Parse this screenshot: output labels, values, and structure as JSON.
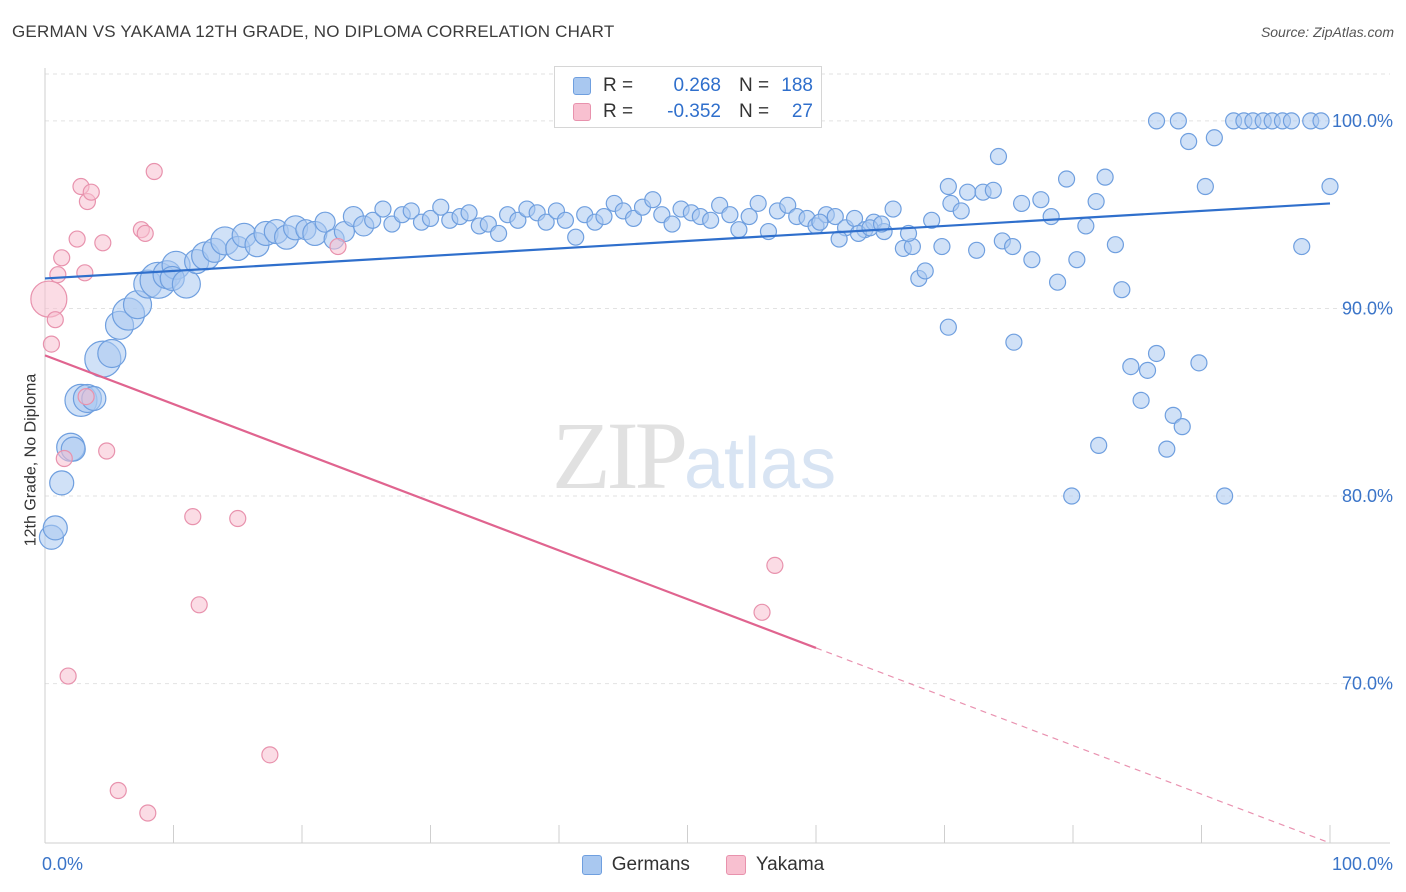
{
  "title": "GERMAN VS YAKAMA 12TH GRADE, NO DIPLOMA CORRELATION CHART",
  "source": "Source: ZipAtlas.com",
  "watermark": {
    "zip": "ZIP",
    "atlas": "atlas"
  },
  "legend": {
    "rows": [
      {
        "r_label": "R =",
        "r_value": "0.268",
        "n_label": "N =",
        "n_value": "188",
        "color": "#a9c8f0",
        "border": "#6f9fdf"
      },
      {
        "r_label": "R =",
        "r_value": "-0.352",
        "n_label": "N =",
        "n_value": "27",
        "color": "#f8c0d0",
        "border": "#e892ad"
      }
    ]
  },
  "bottom_legend": [
    {
      "label": "Germans",
      "color": "#a9c8f0",
      "border": "#6f9fdf"
    },
    {
      "label": "Yakama",
      "color": "#f8c0d0",
      "border": "#e892ad"
    }
  ],
  "chart_data": {
    "type": "scatter",
    "title": "GERMAN VS YAKAMA 12TH GRADE, NO DIPLOMA CORRELATION CHART",
    "xlabel": "",
    "ylabel": "12th Grade, No Diploma",
    "xlim": [
      0,
      100
    ],
    "ylim": [
      61.5,
      102.5
    ],
    "x_tick_labels": [
      {
        "value": 0,
        "label": "0.0%"
      },
      {
        "value": 100,
        "label": "100.0%"
      }
    ],
    "y_tick_labels": [
      {
        "value": 70,
        "label": "70.0%"
      },
      {
        "value": 80,
        "label": "80.0%"
      },
      {
        "value": 90,
        "label": "90.0%"
      },
      {
        "value": 100,
        "label": "100.0%"
      }
    ],
    "grid": "horizontal dashed",
    "series": [
      {
        "name": "Germans",
        "color": "#a9c8f0",
        "stroke": "#6f9fdf",
        "trend": {
          "x": [
            0,
            100
          ],
          "y": [
            91.6,
            95.6
          ],
          "color": "#2f6fcc"
        },
        "points": [
          [
            0.5,
            77.8,
            12
          ],
          [
            0.8,
            78.3,
            12
          ],
          [
            1.3,
            80.7,
            12
          ],
          [
            2.0,
            82.6,
            14
          ],
          [
            2.2,
            82.5,
            12
          ],
          [
            2.8,
            85.1,
            16
          ],
          [
            3.3,
            85.2,
            14
          ],
          [
            3.8,
            85.2,
            12
          ],
          [
            4.5,
            87.3,
            18
          ],
          [
            5.2,
            87.6,
            14
          ],
          [
            5.8,
            89.1,
            14
          ],
          [
            6.5,
            89.7,
            16
          ],
          [
            7.2,
            90.2,
            14
          ],
          [
            8.0,
            91.3,
            14
          ],
          [
            8.8,
            91.5,
            18
          ],
          [
            9.5,
            91.8,
            14
          ],
          [
            10.2,
            92.3,
            14
          ],
          [
            9.9,
            91.6,
            12
          ],
          [
            11.0,
            91.3,
            14
          ],
          [
            11.8,
            92.5,
            12
          ],
          [
            12.5,
            92.8,
            14
          ],
          [
            13.2,
            93.1,
            12
          ],
          [
            14.0,
            93.6,
            14
          ],
          [
            15.0,
            93.2,
            12
          ],
          [
            15.5,
            93.9,
            12
          ],
          [
            16.5,
            93.4,
            12
          ],
          [
            17.2,
            94.0,
            12
          ],
          [
            18.0,
            94.1,
            12
          ],
          [
            18.8,
            93.8,
            12
          ],
          [
            19.5,
            94.3,
            12
          ],
          [
            20.3,
            94.2,
            10
          ],
          [
            21.0,
            94.0,
            12
          ],
          [
            21.8,
            94.6,
            10
          ],
          [
            22.5,
            93.7,
            10
          ],
          [
            23.3,
            94.1,
            10
          ],
          [
            24.0,
            94.9,
            10
          ],
          [
            24.8,
            94.4,
            10
          ],
          [
            25.5,
            94.7,
            8
          ],
          [
            26.3,
            95.3,
            8
          ],
          [
            27.0,
            94.5,
            8
          ],
          [
            27.8,
            95.0,
            8
          ],
          [
            28.5,
            95.2,
            8
          ],
          [
            29.3,
            94.6,
            8
          ],
          [
            30.0,
            94.8,
            8
          ],
          [
            30.8,
            95.4,
            8
          ],
          [
            31.5,
            94.7,
            8
          ],
          [
            32.3,
            94.9,
            8
          ],
          [
            33.0,
            95.1,
            8
          ],
          [
            33.8,
            94.4,
            8
          ],
          [
            34.5,
            94.5,
            8
          ],
          [
            35.3,
            94.0,
            8
          ],
          [
            36.0,
            95.0,
            8
          ],
          [
            36.8,
            94.7,
            8
          ],
          [
            37.5,
            95.3,
            8
          ],
          [
            38.3,
            95.1,
            8
          ],
          [
            39.0,
            94.6,
            8
          ],
          [
            39.8,
            95.2,
            8
          ],
          [
            40.5,
            94.7,
            8
          ],
          [
            41.3,
            93.8,
            8
          ],
          [
            42.0,
            95.0,
            8
          ],
          [
            42.8,
            94.6,
            8
          ],
          [
            43.5,
            94.9,
            8
          ],
          [
            44.3,
            95.6,
            8
          ],
          [
            45.0,
            95.2,
            8
          ],
          [
            45.8,
            94.8,
            8
          ],
          [
            46.5,
            95.4,
            8
          ],
          [
            47.3,
            95.8,
            8
          ],
          [
            48.0,
            95.0,
            8
          ],
          [
            48.8,
            94.5,
            8
          ],
          [
            49.5,
            95.3,
            8
          ],
          [
            50.3,
            95.1,
            8
          ],
          [
            51.0,
            94.9,
            8
          ],
          [
            51.8,
            94.7,
            8
          ],
          [
            52.5,
            95.5,
            8
          ],
          [
            53.3,
            95.0,
            8
          ],
          [
            54.0,
            94.2,
            8
          ],
          [
            54.8,
            94.9,
            8
          ],
          [
            55.5,
            95.6,
            8
          ],
          [
            56.3,
            94.1,
            8
          ],
          [
            57.0,
            95.2,
            8
          ],
          [
            57.8,
            95.5,
            8
          ],
          [
            58.5,
            94.9,
            8
          ],
          [
            59.3,
            94.8,
            8
          ],
          [
            60.0,
            94.4,
            8
          ],
          [
            60.8,
            95.0,
            8
          ],
          [
            61.5,
            94.9,
            8
          ],
          [
            62.3,
            94.3,
            8
          ],
          [
            63.0,
            94.8,
            8
          ],
          [
            63.8,
            94.2,
            8
          ],
          [
            64.5,
            94.6,
            8
          ],
          [
            65.3,
            94.1,
            8
          ],
          [
            66.0,
            95.3,
            8
          ],
          [
            66.8,
            93.2,
            8
          ],
          [
            67.5,
            93.3,
            8
          ],
          [
            68.0,
            91.6,
            8
          ],
          [
            68.5,
            92.0,
            8
          ],
          [
            69.0,
            94.7,
            8
          ],
          [
            69.8,
            93.3,
            8
          ],
          [
            70.5,
            95.6,
            8
          ],
          [
            71.3,
            95.2,
            8
          ],
          [
            71.8,
            96.2,
            8
          ],
          [
            72.5,
            93.1,
            8
          ],
          [
            73.0,
            96.2,
            8
          ],
          [
            73.8,
            96.3,
            8
          ],
          [
            74.5,
            93.6,
            8
          ],
          [
            75.3,
            93.3,
            8
          ],
          [
            76.0,
            95.6,
            8
          ],
          [
            76.8,
            92.6,
            8
          ],
          [
            77.5,
            95.8,
            8
          ],
          [
            78.3,
            94.9,
            8
          ],
          [
            78.8,
            91.4,
            8
          ],
          [
            79.5,
            96.9,
            8
          ],
          [
            80.3,
            92.6,
            8
          ],
          [
            81.0,
            94.4,
            8
          ],
          [
            81.8,
            95.7,
            8
          ],
          [
            82.5,
            97.0,
            8
          ],
          [
            83.3,
            93.4,
            8
          ],
          [
            83.8,
            91.0,
            8
          ],
          [
            84.5,
            86.9,
            8
          ],
          [
            85.3,
            85.1,
            8
          ],
          [
            85.8,
            86.7,
            8
          ],
          [
            86.5,
            87.6,
            8
          ],
          [
            87.3,
            82.5,
            8
          ],
          [
            87.8,
            84.3,
            8
          ],
          [
            88.5,
            83.7,
            8
          ],
          [
            89.0,
            98.9,
            8
          ],
          [
            89.8,
            87.1,
            8
          ],
          [
            90.3,
            96.5,
            8
          ],
          [
            91.0,
            99.1,
            8
          ],
          [
            91.8,
            80.0,
            8
          ],
          [
            92.5,
            100.0,
            8
          ],
          [
            93.3,
            100.0,
            8
          ],
          [
            94.0,
            100.0,
            8
          ],
          [
            94.8,
            100.0,
            8
          ],
          [
            95.5,
            100.0,
            8
          ],
          [
            96.3,
            100.0,
            8
          ],
          [
            97.0,
            100.0,
            8
          ],
          [
            97.8,
            93.3,
            8
          ],
          [
            98.5,
            100.0,
            8
          ],
          [
            99.3,
            100.0,
            8
          ],
          [
            100.0,
            96.5,
            8
          ],
          [
            70.3,
            96.5,
            8
          ],
          [
            74.2,
            98.1,
            8
          ],
          [
            70.3,
            89.0,
            8
          ],
          [
            75.4,
            88.2,
            8
          ],
          [
            79.9,
            80.0,
            8
          ],
          [
            82.0,
            82.7,
            8
          ],
          [
            86.5,
            100.0,
            8
          ],
          [
            88.2,
            100.0,
            8
          ],
          [
            60.3,
            94.6,
            8
          ],
          [
            61.8,
            93.7,
            8
          ],
          [
            63.3,
            94.0,
            8
          ],
          [
            64.2,
            94.3,
            8
          ],
          [
            65.1,
            94.5,
            8
          ],
          [
            67.2,
            94.0,
            8
          ]
        ]
      },
      {
        "name": "Yakama",
        "color": "#f8c0d0",
        "stroke": "#e892ad",
        "trend": {
          "x": [
            0,
            100
          ],
          "y": [
            87.5,
            61.5
          ],
          "solid_until": 60,
          "color": "#e0648f"
        },
        "points": [
          [
            0.3,
            90.5,
            18
          ],
          [
            0.5,
            88.1,
            8
          ],
          [
            0.8,
            89.4,
            8
          ],
          [
            1.0,
            91.8,
            8
          ],
          [
            1.3,
            92.7,
            8
          ],
          [
            1.5,
            82.0,
            8
          ],
          [
            1.8,
            70.4,
            8
          ],
          [
            2.5,
            93.7,
            8
          ],
          [
            2.8,
            96.5,
            8
          ],
          [
            3.1,
            91.9,
            8
          ],
          [
            3.3,
            95.7,
            8
          ],
          [
            3.6,
            96.2,
            8
          ],
          [
            4.5,
            93.5,
            8
          ],
          [
            4.8,
            82.4,
            8
          ],
          [
            5.7,
            64.3,
            8
          ],
          [
            7.5,
            94.2,
            8
          ],
          [
            7.8,
            94.0,
            8
          ],
          [
            8.0,
            63.1,
            8
          ],
          [
            8.5,
            97.3,
            8
          ],
          [
            11.5,
            78.9,
            8
          ],
          [
            12.0,
            74.2,
            8
          ],
          [
            15.0,
            78.8,
            8
          ],
          [
            17.5,
            66.2,
            8
          ],
          [
            22.8,
            93.3,
            8
          ],
          [
            55.8,
            73.8,
            8
          ],
          [
            56.8,
            76.3,
            8
          ],
          [
            3.2,
            85.3,
            8
          ]
        ]
      }
    ]
  }
}
